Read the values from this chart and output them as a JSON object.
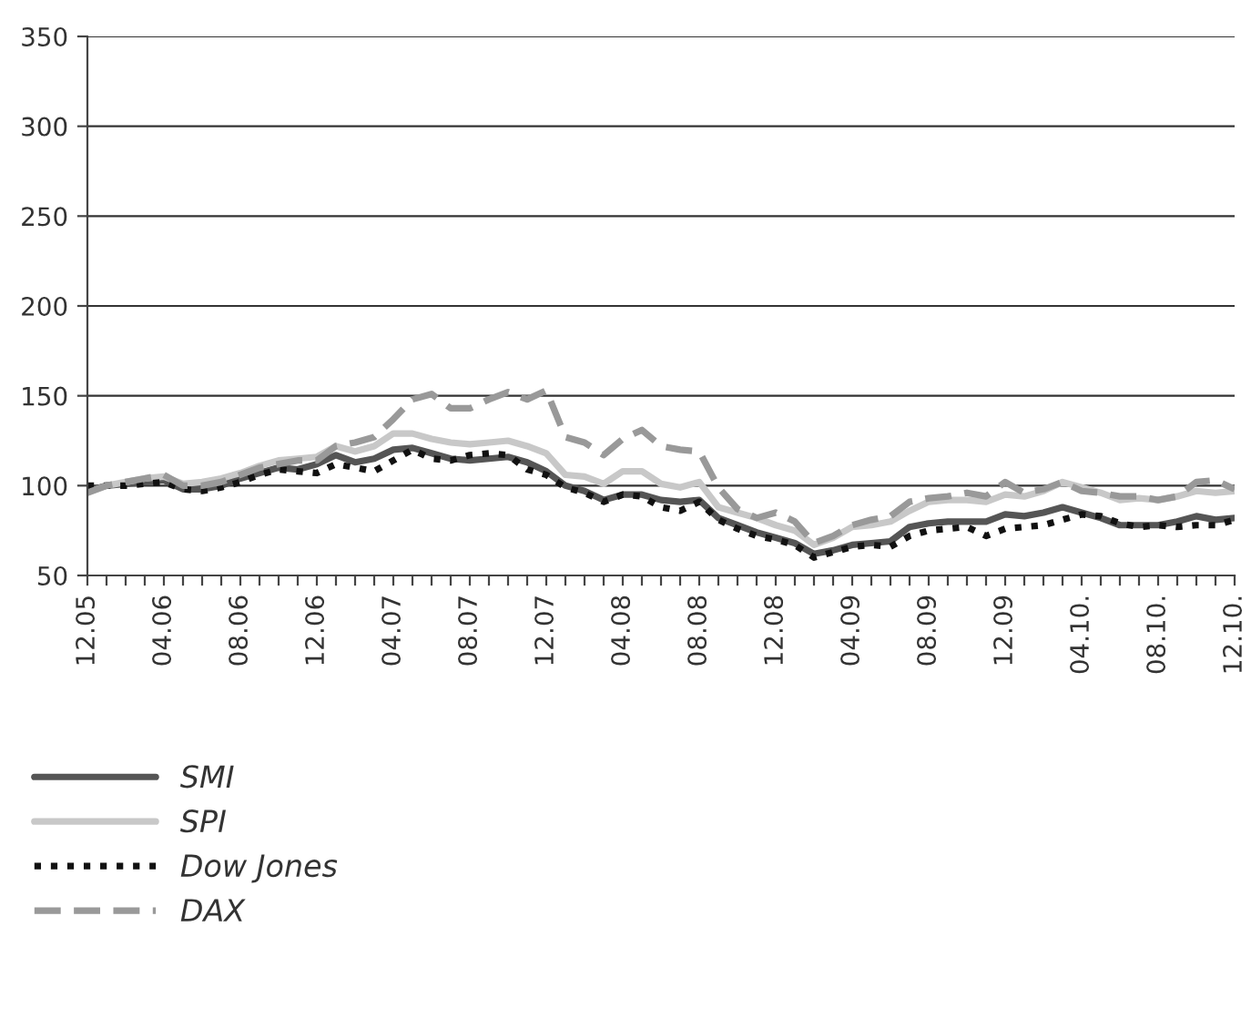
{
  "chart_data": {
    "type": "line",
    "categories": [
      "12.05",
      null,
      null,
      null,
      "04.06",
      null,
      null,
      null,
      "08.06",
      null,
      null,
      null,
      "12.06",
      null,
      null,
      null,
      "04.07",
      null,
      null,
      null,
      "08.07",
      null,
      null,
      null,
      "12.07",
      null,
      null,
      null,
      "04.08",
      null,
      null,
      null,
      "08.08",
      null,
      null,
      null,
      "12.08",
      null,
      null,
      null,
      "04.09",
      null,
      null,
      null,
      "08.09",
      null,
      null,
      null,
      "12.09",
      null,
      null,
      null,
      "04.10.",
      null,
      null,
      null,
      "08.10.",
      null,
      null,
      null,
      "12.10."
    ],
    "series": [
      {
        "name": "SMI",
        "color": "#555555",
        "line_style": "solid",
        "values": [
          97,
          100,
          101,
          102,
          103,
          98,
          98,
          100,
          104,
          107,
          110,
          109,
          112,
          117,
          113,
          115,
          120,
          121,
          118,
          115,
          114,
          115,
          116,
          113,
          108,
          100,
          97,
          92,
          95,
          95,
          92,
          91,
          92,
          82,
          78,
          74,
          71,
          68,
          62,
          64,
          67,
          68,
          69,
          77,
          79,
          80,
          80,
          80,
          84,
          83,
          85,
          88,
          85,
          82,
          78,
          78,
          78,
          80,
          83,
          81,
          82
        ]
      },
      {
        "name": "SPI",
        "color": "#c8c8c8",
        "line_style": "solid",
        "values": [
          96,
          100,
          102,
          104,
          105,
          101,
          102,
          104,
          107,
          111,
          114,
          115,
          116,
          122,
          119,
          122,
          129,
          129,
          126,
          124,
          123,
          124,
          125,
          122,
          118,
          106,
          105,
          101,
          108,
          108,
          101,
          99,
          102,
          88,
          85,
          82,
          78,
          75,
          67,
          71,
          77,
          78,
          80,
          86,
          91,
          92,
          92,
          91,
          95,
          94,
          97,
          102,
          99,
          96,
          92,
          93,
          92,
          94,
          97,
          96,
          97
        ]
      },
      {
        "name": "Dow Jones",
        "color": "#111111",
        "line_style": "dotted",
        "values": [
          100,
          100,
          100,
          101,
          102,
          98,
          97,
          99,
          102,
          106,
          109,
          108,
          107,
          112,
          110,
          108,
          114,
          120,
          115,
          114,
          117,
          118,
          117,
          109,
          106,
          99,
          96,
          91,
          95,
          94,
          88,
          86,
          91,
          81,
          76,
          72,
          70,
          67,
          60,
          63,
          66,
          67,
          66,
          72,
          75,
          76,
          77,
          72,
          76,
          77,
          78,
          81,
          84,
          83,
          79,
          77,
          78,
          77,
          78,
          78,
          81
        ]
      },
      {
        "name": "DAX",
        "color": "#999999",
        "line_style": "dashed",
        "values": [
          96,
          100,
          102,
          104,
          106,
          100,
          100,
          102,
          106,
          110,
          112,
          114,
          114,
          122,
          124,
          127,
          137,
          148,
          151,
          143,
          143,
          148,
          152,
          148,
          153,
          127,
          124,
          117,
          126,
          131,
          122,
          120,
          119,
          99,
          87,
          82,
          85,
          80,
          68,
          72,
          78,
          81,
          83,
          91,
          93,
          94,
          96,
          94,
          102,
          96,
          98,
          102,
          97,
          96,
          94,
          94,
          92,
          94,
          102,
          103,
          98
        ]
      }
    ],
    "ylim": [
      50,
      350
    ],
    "yticks": [
      50,
      100,
      150,
      200,
      250,
      300,
      350
    ],
    "grid": "y",
    "legend": "bottom",
    "marker": "none"
  }
}
